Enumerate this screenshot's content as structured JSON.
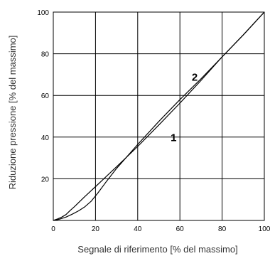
{
  "chart_data": {
    "type": "line",
    "title": "",
    "xlabel": "Segnale di riferimento [% del massimo]",
    "ylabel": "Riduzione pressione [% del massimo]",
    "xlim": [
      0,
      100
    ],
    "ylim": [
      0,
      100
    ],
    "x_ticks": [
      "0",
      "20",
      "40",
      "60",
      "80",
      "100"
    ],
    "y_ticks": [
      "20",
      "40",
      "60",
      "80",
      "100"
    ],
    "grid": true,
    "legend": "none",
    "series": [
      {
        "name": "1",
        "x": [
          0,
          3,
          6,
          9,
          12,
          15,
          18,
          21,
          25,
          30,
          40,
          50,
          60,
          70,
          80,
          90,
          100
        ],
        "y": [
          0,
          0.6,
          1.6,
          3,
          4.6,
          6.6,
          9.3,
          13,
          18.5,
          25,
          36.5,
          47.5,
          58,
          68,
          78.5,
          89,
          100
        ]
      },
      {
        "name": "2",
        "x": [
          0,
          2,
          4,
          6,
          8,
          10,
          15,
          20,
          30,
          40,
          50,
          60,
          70,
          80,
          90,
          100
        ],
        "y": [
          0,
          0.7,
          1.6,
          2.8,
          4.8,
          6.6,
          11.5,
          16.2,
          25.8,
          35.5,
          45.8,
          56.3,
          67.2,
          78.5,
          89,
          100
        ]
      }
    ],
    "annotations": [
      {
        "text": "1",
        "x": 57,
        "y": 38
      },
      {
        "text": "2",
        "x": 67,
        "y": 67
      }
    ]
  }
}
